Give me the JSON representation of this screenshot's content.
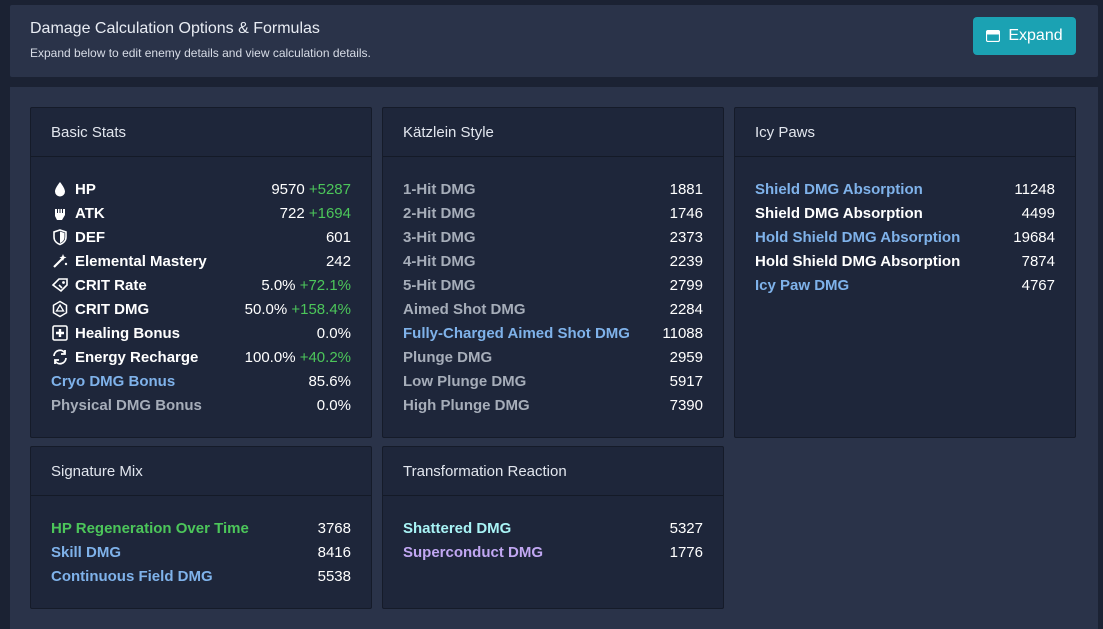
{
  "header": {
    "title": "Damage Calculation Options & Formulas",
    "subtitle": "Expand below to edit enemy details and view calculation details.",
    "expand_label": "Expand"
  },
  "basic_stats": {
    "title": "Basic Stats",
    "rows": [
      {
        "icon": "hp-drop-icon",
        "label": "HP",
        "value": "9570",
        "bonus": "+5287"
      },
      {
        "icon": "atk-fist-icon",
        "label": "ATK",
        "value": "722",
        "bonus": "+1694"
      },
      {
        "icon": "def-shield-icon",
        "label": "DEF",
        "value": "601",
        "bonus": ""
      },
      {
        "icon": "elemental-mastery-icon",
        "label": "Elemental Mastery",
        "value": "242",
        "bonus": ""
      },
      {
        "icon": "crit-rate-icon",
        "label": "CRIT Rate",
        "value": "5.0%",
        "bonus": "+72.1%"
      },
      {
        "icon": "crit-dmg-icon",
        "label": "CRIT DMG",
        "value": "50.0%",
        "bonus": "+158.4%"
      },
      {
        "icon": "healing-bonus-icon",
        "label": "Healing Bonus",
        "value": "0.0%",
        "bonus": ""
      },
      {
        "icon": "energy-recharge-icon",
        "label": "Energy Recharge",
        "value": "100.0%",
        "bonus": "+40.2%"
      }
    ],
    "cryo": {
      "label": "Cryo DMG Bonus",
      "value": "85.6%"
    },
    "physical": {
      "label": "Physical DMG Bonus",
      "value": "0.0%"
    }
  },
  "katzlein": {
    "title": "Kätzlein Style",
    "rows": [
      {
        "label": "1-Hit DMG",
        "value": "1881",
        "color": "grey"
      },
      {
        "label": "2-Hit DMG",
        "value": "1746",
        "color": "grey"
      },
      {
        "label": "3-Hit DMG",
        "value": "2373",
        "color": "grey"
      },
      {
        "label": "4-Hit DMG",
        "value": "2239",
        "color": "grey"
      },
      {
        "label": "5-Hit DMG",
        "value": "2799",
        "color": "grey"
      },
      {
        "label": "Aimed Shot DMG",
        "value": "2284",
        "color": "grey"
      },
      {
        "label": "Fully-Charged Aimed Shot DMG",
        "value": "11088",
        "color": "blue"
      },
      {
        "label": "Plunge DMG",
        "value": "2959",
        "color": "grey"
      },
      {
        "label": "Low Plunge DMG",
        "value": "5917",
        "color": "grey"
      },
      {
        "label": "High Plunge DMG",
        "value": "7390",
        "color": "grey"
      }
    ]
  },
  "icy_paws": {
    "title": "Icy Paws",
    "rows": [
      {
        "label": "Shield DMG Absorption",
        "value": "11248",
        "color": "blue"
      },
      {
        "label": "Shield DMG Absorption",
        "value": "4499",
        "color": "white"
      },
      {
        "label": "Hold Shield DMG Absorption",
        "value": "19684",
        "color": "blue"
      },
      {
        "label": "Hold Shield DMG Absorption",
        "value": "7874",
        "color": "white"
      },
      {
        "label": "Icy Paw DMG",
        "value": "4767",
        "color": "blue"
      }
    ]
  },
  "signature_mix": {
    "title": "Signature Mix",
    "rows": [
      {
        "label": "HP Regeneration Over Time",
        "value": "3768",
        "color": "green"
      },
      {
        "label": "Skill DMG",
        "value": "8416",
        "color": "blue"
      },
      {
        "label": "Continuous Field DMG",
        "value": "5538",
        "color": "blue"
      }
    ]
  },
  "transformation": {
    "title": "Transformation Reaction",
    "rows": [
      {
        "label": "Shattered DMG",
        "value": "5327",
        "color": "cyan"
      },
      {
        "label": "Superconduct DMG",
        "value": "1776",
        "color": "purple"
      }
    ]
  },
  "colors": {
    "page_bg": "#1b2233",
    "panel_bg": "#2a3349",
    "card_bg": "#1e263a",
    "accent_button": "#1ba2b3",
    "bonus_green": "#4cc65a",
    "cryo_blue": "#7fb2ea",
    "label_grey": "#a6adb9",
    "shattered_cyan": "#a8f3f5",
    "superconduct_purple": "#c1a7f2"
  }
}
